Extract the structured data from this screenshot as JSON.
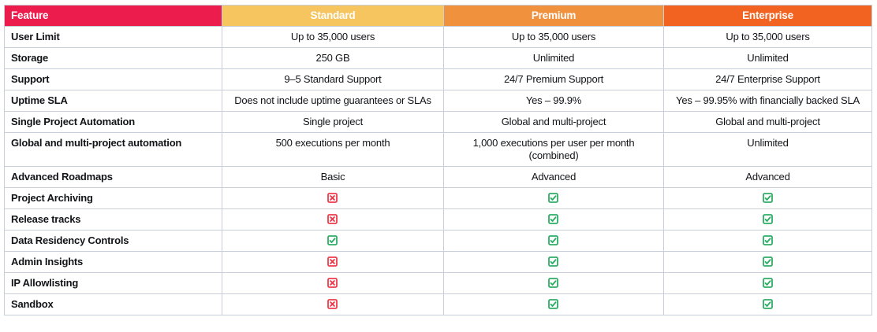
{
  "table": {
    "columns": [
      {
        "label": "Feature",
        "color": "#ec1c4d"
      },
      {
        "label": "Standard",
        "color": "#f6c55f"
      },
      {
        "label": "Premium",
        "color": "#f0913e"
      },
      {
        "label": "Enterprise",
        "color": "#f26322"
      }
    ],
    "rows": [
      {
        "feature": "User Limit",
        "values": [
          "Up to 35,000 users",
          "Up to 35,000 users",
          "Up to 35,000 users"
        ]
      },
      {
        "feature": "Storage",
        "values": [
          "250 GB",
          "Unlimited",
          "Unlimited"
        ]
      },
      {
        "feature": "Support",
        "values": [
          "9–5 Standard Support",
          "24/7 Premium Support",
          "24/7 Enterprise Support"
        ]
      },
      {
        "feature": "Uptime SLA",
        "values": [
          "Does not include uptime guarantees or SLAs",
          "Yes – 99.9%",
          "Yes – 99.95% with financially backed SLA"
        ]
      },
      {
        "feature": "Single Project Automation",
        "values": [
          "Single project",
          "Global and multi-project",
          "Global and multi-project"
        ]
      },
      {
        "feature": "Global and multi-project automation",
        "values": [
          "500 executions per month",
          "1,000 executions per user per month (combined)",
          "Unlimited"
        ]
      },
      {
        "feature": "Advanced Roadmaps",
        "values": [
          "Basic",
          "Advanced",
          "Advanced"
        ]
      },
      {
        "feature": "Project Archiving",
        "values": [
          {
            "icon": "cross"
          },
          {
            "icon": "check"
          },
          {
            "icon": "check"
          }
        ]
      },
      {
        "feature": "Release tracks",
        "values": [
          {
            "icon": "cross"
          },
          {
            "icon": "check"
          },
          {
            "icon": "check"
          }
        ]
      },
      {
        "feature": "Data Residency Controls",
        "values": [
          {
            "icon": "check"
          },
          {
            "icon": "check"
          },
          {
            "icon": "check"
          }
        ]
      },
      {
        "feature": "Admin Insights",
        "values": [
          {
            "icon": "cross"
          },
          {
            "icon": "check"
          },
          {
            "icon": "check"
          }
        ]
      },
      {
        "feature": "IP Allowlisting",
        "values": [
          {
            "icon": "cross"
          },
          {
            "icon": "check"
          },
          {
            "icon": "check"
          }
        ]
      },
      {
        "feature": "Sandbox",
        "values": [
          {
            "icon": "cross"
          },
          {
            "icon": "check"
          },
          {
            "icon": "check"
          }
        ]
      }
    ],
    "colors": {
      "check": "#2ead66",
      "cross": "#ee3b4b",
      "border": "#c9cfd8",
      "text": "#121418"
    }
  }
}
